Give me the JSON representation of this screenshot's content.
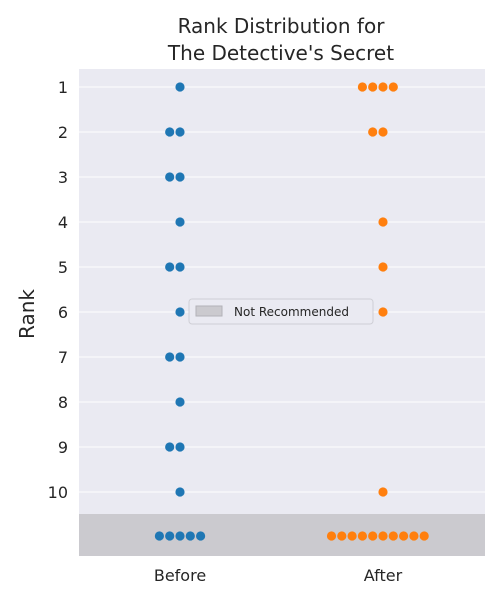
{
  "chart_data": {
    "type": "scatter",
    "title_lines": [
      "Rank Distribution for",
      "The Detective's Secret"
    ],
    "ylabel": "Rank",
    "xlabel": "",
    "categories": [
      "Before",
      "After"
    ],
    "rank_ticks": [
      "1",
      "2",
      "3",
      "4",
      "5",
      "6",
      "7",
      "8",
      "9",
      "10"
    ],
    "rank_range": [
      1,
      10
    ],
    "not_recommended_label": "Not Recommended",
    "grid": true,
    "legend_position": "center",
    "background": "#eaeaf2",
    "not_recommended_color": "#cbcacf",
    "series": [
      {
        "category": "Before",
        "color": "#1f77b4",
        "counts": {
          "1": 1,
          "2": 2,
          "3": 2,
          "4": 1,
          "5": 2,
          "6": 1,
          "7": 2,
          "8": 1,
          "9": 2,
          "10": 1,
          "not_recommended": 5
        }
      },
      {
        "category": "After",
        "color": "#ff7f0e",
        "counts": {
          "1": 4,
          "2": 2,
          "3": 0,
          "4": 1,
          "5": 1,
          "6": 1,
          "7": 0,
          "8": 0,
          "9": 0,
          "10": 1,
          "not_recommended": 10
        }
      }
    ]
  }
}
